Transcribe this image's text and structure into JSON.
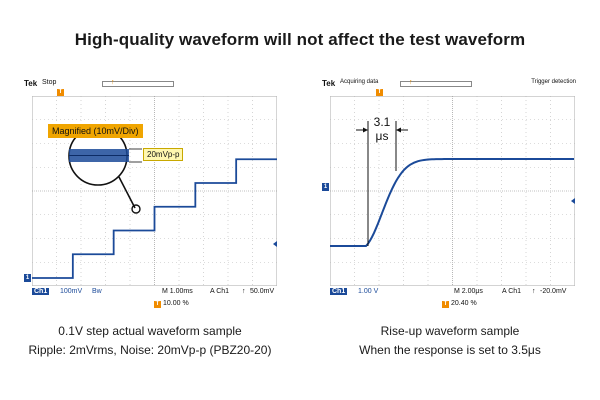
{
  "headline": "High-quality waveform will not affect the test waveform",
  "left_scope": {
    "brand": "Tek",
    "mode": "Stop",
    "magnified_label": "Magnified (10mV/Div)",
    "ripple_annotation": "20mVp-p",
    "channel_label": "Ch1",
    "channel_scale": "100mV",
    "bandwidth_symbol": "Bw",
    "timebase": "M 1.00ms",
    "trigger_source": "A  Ch1",
    "trigger_slope": "↑",
    "trigger_level": "50.0mV",
    "trigger_position": "10.00 %",
    "channel_marker": "1",
    "trigger_marker": "T",
    "step_levels_v": [
      0.0,
      0.1,
      0.2,
      0.3,
      0.4,
      0.5
    ]
  },
  "right_scope": {
    "brand": "Tek",
    "mode": "Acquiring data",
    "trigger_detection": "Trigger detection",
    "rise_time_value": "3.1",
    "rise_time_unit": "μs",
    "channel_label": "Ch1",
    "channel_scale": "1.00 V",
    "timebase": "M 2.00μs",
    "trigger_source": "A  Ch1",
    "trigger_slope": "↑",
    "trigger_level": "-20.0mV",
    "trigger_position": "20.40 %",
    "channel_marker": "1",
    "trigger_marker": "T"
  },
  "captions": {
    "left_line1": "0.1V step actual waveform sample",
    "left_line2": "Ripple: 2mVrms, Noise: 20mVp-p (PBZ20-20)",
    "right_line1": "Rise-up waveform sample",
    "right_line2": "When the response is set to 3.5μs"
  },
  "colors": {
    "trace": "#1b4a99",
    "grid": "#b9b9b9",
    "accent_orange": "#f08c00",
    "annotation_yellow": "#fff7b0"
  }
}
